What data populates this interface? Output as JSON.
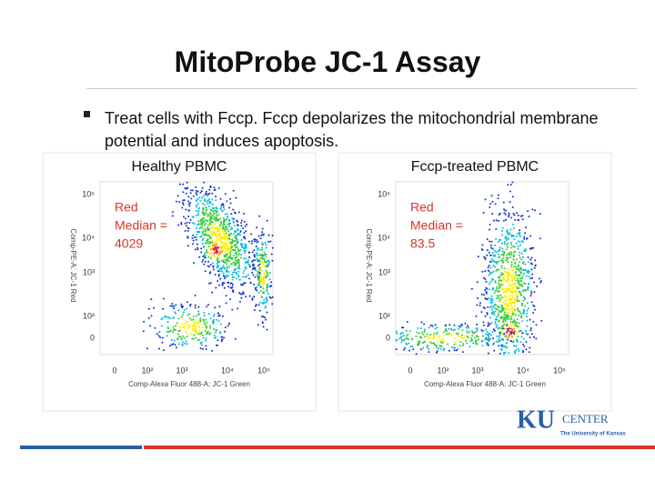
{
  "title": "MitoProbe JC-1 Assay",
  "bullet": "Treat cells with Fccp. Fccp depolarizes the mitochondrial membrane potential and induces apoptosis.",
  "panels": [
    {
      "heading": "Healthy PBMC",
      "annotation": [
        "Red",
        "Median =",
        "4029"
      ],
      "y_axis_label": "Comp-PE-A: JC-1 Red",
      "x_axis_label": "Comp-Alexa Fluor 488-A: JC-1 Green",
      "x_ticks": [
        "0",
        "10²",
        "10³",
        "10⁴",
        "10⁵"
      ],
      "y_ticks": [
        "0",
        "10²",
        "10³",
        "10⁴",
        "10⁵"
      ]
    },
    {
      "heading": "Fccp-treated PBMC",
      "annotation": [
        "Red",
        "Median =",
        "83.5"
      ],
      "y_axis_label": "Comp-PE-A: JC-1 Red",
      "x_axis_label": "Comp-Alexa Fluor 488-A: JC-1 Green",
      "x_ticks": [
        "0",
        "10²",
        "10³",
        "10⁴",
        "10⁵"
      ],
      "y_ticks": [
        "0",
        "10²",
        "10³",
        "10⁴",
        "10⁵"
      ]
    }
  ],
  "logo": {
    "mark": "KU",
    "name": "CENTER",
    "university": "The University of Kansas"
  }
}
